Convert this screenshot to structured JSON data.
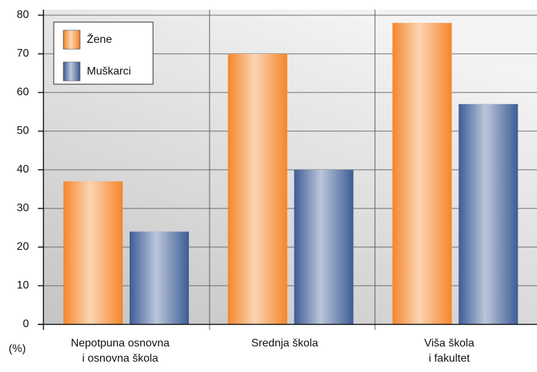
{
  "chart_data": {
    "type": "bar",
    "categories": [
      "Nepotpuna osnovna\ni osnovna škola",
      "Srednja škola",
      "Viša škola\ni fakultet"
    ],
    "series": [
      {
        "name": "Žene",
        "color": "#f5862a",
        "values": [
          37,
          70,
          78
        ]
      },
      {
        "name": "Muškarci",
        "color": "#3d5d96",
        "values": [
          24,
          40,
          57
        ]
      }
    ],
    "y_label": "(%)",
    "ylim": [
      0,
      80
    ],
    "yticks": [
      0,
      10,
      20,
      30,
      40,
      50,
      60,
      70,
      80
    ],
    "grid": true,
    "legend": "upper-left"
  }
}
